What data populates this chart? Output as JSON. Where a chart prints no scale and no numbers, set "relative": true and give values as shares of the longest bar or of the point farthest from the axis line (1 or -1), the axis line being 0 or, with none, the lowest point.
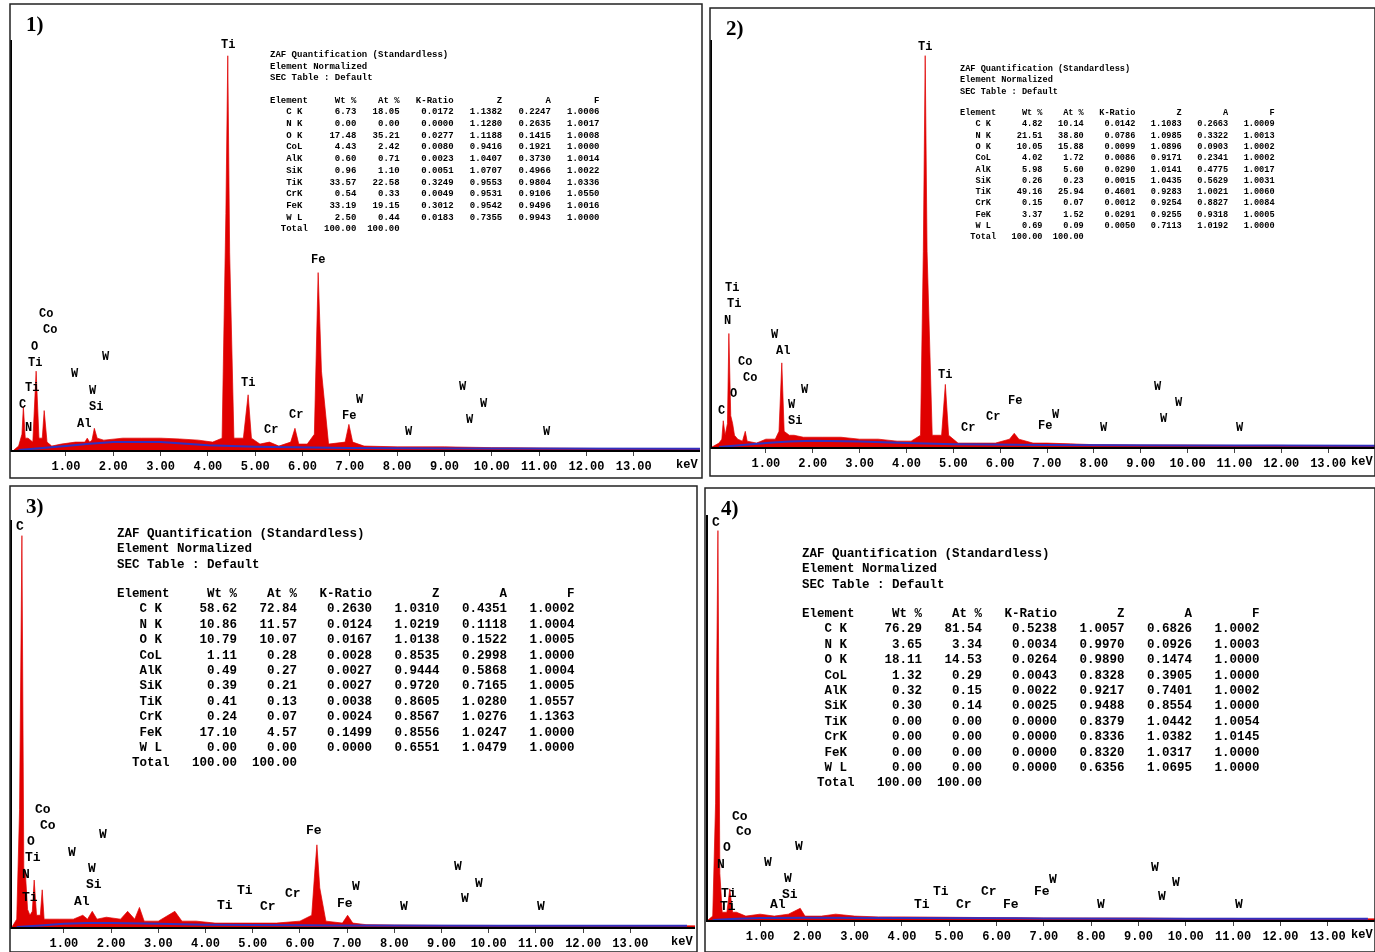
{
  "chart_data": [
    {
      "type": "area",
      "title": "1)",
      "xlabel": "keV",
      "relative": true,
      "xlim": [
        -0.14,
        14.4
      ],
      "xticks": [
        {
          "value": 1,
          "label": "1.00"
        },
        {
          "value": 2,
          "label": "2.00"
        },
        {
          "value": 3,
          "label": "3.00"
        },
        {
          "value": 4,
          "label": "4.00"
        },
        {
          "value": 5,
          "label": "5.00"
        },
        {
          "value": 6,
          "label": "6.00"
        },
        {
          "value": 7,
          "label": "7.00"
        },
        {
          "value": 8,
          "label": "8.00"
        },
        {
          "value": 9,
          "label": "9.00"
        },
        {
          "value": 10,
          "label": "10.00"
        },
        {
          "value": 11,
          "label": "11.00"
        },
        {
          "value": 12,
          "label": "12.00"
        },
        {
          "value": 13,
          "label": "13.00"
        }
      ],
      "series": [
        {
          "color": "#e00000",
          "x": [
            -0.1,
            0.0,
            0.07,
            0.1,
            0.14,
            0.2,
            0.3,
            0.37,
            0.43,
            0.5,
            0.54,
            0.6,
            0.7,
            0.9,
            1.2,
            1.4,
            1.45,
            1.5,
            1.55,
            1.6,
            1.66,
            1.8,
            2.2,
            2.6,
            3.0,
            3.4,
            3.8,
            4.1,
            4.3,
            4.38,
            4.42,
            4.46,
            4.55,
            4.75,
            4.85,
            4.92,
            5.1,
            5.3,
            5.5,
            5.75,
            5.84,
            5.92,
            6.1,
            6.25,
            6.33,
            6.4,
            6.55,
            6.9,
            6.98,
            7.06,
            7.3,
            8.0,
            9.0,
            10.0,
            11.0,
            12.0,
            13.0,
            14.4
          ],
          "values": [
            0,
            0.01,
            0.04,
            0.11,
            0.03,
            0.03,
            0.02,
            0.2,
            0.03,
            0.03,
            0.1,
            0.02,
            0.01,
            0.015,
            0.02,
            0.02,
            0.03,
            0.02,
            0.025,
            0.055,
            0.03,
            0.025,
            0.03,
            0.03,
            0.03,
            0.028,
            0.025,
            0.02,
            0.03,
            0.6,
            1.0,
            0.5,
            0.03,
            0.03,
            0.14,
            0.03,
            0.015,
            0.02,
            0.01,
            0.02,
            0.055,
            0.015,
            0.015,
            0.04,
            0.45,
            0.2,
            0.015,
            0.02,
            0.065,
            0.02,
            0.01,
            0.008,
            0.008,
            0.006,
            0.005,
            0.004,
            0.003,
            0.003
          ]
        },
        {
          "type": "line",
          "color": "#3030c0",
          "x": [
            0,
            0.5,
            1,
            1.5,
            2,
            3,
            4,
            5,
            7,
            10,
            14.4
          ],
          "values": [
            0,
            0.005,
            0.01,
            0.016,
            0.02,
            0.02,
            0.012,
            0.008,
            0.005,
            0.004,
            0.003
          ]
        }
      ],
      "annotations": [
        "ZAF Quantification (Standardless)",
        "Element Normalized",
        "SEC Table : Default",
        "Element     Wt %    At %   K-Ratio        Z        A        F",
        "   C K      6.73   18.05    0.0172   1.1382   0.2247   1.0006",
        "   N K      0.00    0.00    0.0000   1.1280   0.2635   1.0017",
        "   O K     17.48   35.21    0.0277   1.1188   0.1415   1.0008",
        "   CoL      4.43    2.42    0.0080   0.9416   0.1921   1.0000",
        "   AlK      0.60    0.71    0.0023   1.0407   0.3730   1.0014",
        "   SiK      0.96    1.10    0.0051   1.0707   0.4966   1.0022",
        "   TiK     33.57   22.58    0.3249   0.9553   0.9804   1.0336",
        "   CrK      0.54    0.33    0.0049   0.9531   0.9106   1.0550",
        "   FeK     33.19   19.15    0.3012   0.9542   0.9496   1.0016",
        "   W L      2.50    0.44    0.0183   0.7355   0.9943   1.0000",
        "  Total   100.00  100.00",
        "Ti",
        "Co",
        "Co",
        "O",
        "Ti",
        "Ti",
        "C",
        "N",
        "W",
        "W",
        "W",
        "Si",
        "Al",
        "Ti",
        "Cr",
        "Cr",
        "Fe",
        "Fe",
        "W",
        "W",
        "W",
        "W",
        "W",
        "W"
      ]
    },
    {
      "type": "area",
      "title": "2)",
      "xlabel": "keV",
      "relative": true,
      "xlim": [
        -0.15,
        14.0
      ],
      "xticks": [
        {
          "value": 1,
          "label": "1.00"
        },
        {
          "value": 2,
          "label": "2.00"
        },
        {
          "value": 3,
          "label": "3.00"
        },
        {
          "value": 4,
          "label": "4.00"
        },
        {
          "value": 5,
          "label": "5.00"
        },
        {
          "value": 6,
          "label": "6.00"
        },
        {
          "value": 7,
          "label": "7.00"
        },
        {
          "value": 8,
          "label": "8.00"
        },
        {
          "value": 9,
          "label": "9.00"
        },
        {
          "value": 10,
          "label": "10.00"
        },
        {
          "value": 11,
          "label": "11.00"
        },
        {
          "value": 12,
          "label": "12.00"
        },
        {
          "value": 13,
          "label": "13.00"
        }
      ],
      "series": [
        {
          "color": "#e00000",
          "x": [
            -0.15,
            0.0,
            0.06,
            0.09,
            0.13,
            0.18,
            0.21,
            0.25,
            0.29,
            0.33,
            0.4,
            0.5,
            0.56,
            0.6,
            0.8,
            1.0,
            1.2,
            1.28,
            1.34,
            1.39,
            1.5,
            1.6,
            1.8,
            2.2,
            2.6,
            3.0,
            3.4,
            3.8,
            4.1,
            4.3,
            4.36,
            4.4,
            4.44,
            4.55,
            4.75,
            4.83,
            4.9,
            5.1,
            5.5,
            5.9,
            6.2,
            6.3,
            6.4,
            6.7,
            7.0,
            7.5,
            8.0,
            9.0,
            10.0,
            11.0,
            12.0,
            13.0,
            14.0
          ],
          "values": [
            0,
            0.01,
            0.02,
            0.067,
            0.03,
            0.06,
            0.29,
            0.08,
            0.06,
            0.03,
            0.02,
            0.015,
            0.04,
            0.015,
            0.01,
            0.02,
            0.02,
            0.04,
            0.215,
            0.04,
            0.03,
            0.03,
            0.025,
            0.025,
            0.025,
            0.02,
            0.02,
            0.015,
            0.015,
            0.03,
            0.5,
            1.0,
            0.5,
            0.03,
            0.03,
            0.16,
            0.03,
            0.01,
            0.01,
            0.01,
            0.02,
            0.035,
            0.02,
            0.01,
            0.01,
            0.008,
            0.006,
            0.005,
            0.005,
            0.004,
            0.004,
            0.003,
            0.003
          ]
        },
        {
          "type": "line",
          "color": "#3030c0",
          "x": [
            0,
            0.5,
            1,
            1.5,
            2,
            3,
            4,
            5,
            7,
            10,
            14.0
          ],
          "values": [
            0,
            0.005,
            0.01,
            0.014,
            0.016,
            0.014,
            0.01,
            0.007,
            0.005,
            0.004,
            0.003
          ]
        }
      ],
      "annotations": [
        "ZAF Quantification (Standardless)",
        "Element Normalized",
        "SEC Table : Default",
        "Element     Wt %    At %   K-Ratio        Z        A        F",
        "   C K      4.82   10.14    0.0142   1.1083   0.2663   1.0009",
        "   N K     21.51   38.80    0.0786   1.0985   0.3322   1.0013",
        "   O K     10.05   15.88    0.0099   1.0896   0.0903   1.0002",
        "   CoL      4.02    1.72    0.0086   0.9171   0.2341   1.0002",
        "   AlK      5.98    5.60    0.0290   1.0141   0.4775   1.0017",
        "   SiK      0.26    0.23    0.0015   1.0435   0.5629   1.0031",
        "   TiK     49.16   25.94    0.4601   0.9283   1.0021   1.0060",
        "   CrK      0.15    0.07    0.0012   0.9254   0.8827   1.0084",
        "   FeK      3.37    1.52    0.0291   0.9255   0.9318   1.0005",
        "   W L      0.69    0.09    0.0050   0.7113   1.0192   1.0000",
        "  Total   100.00  100.00",
        "Ti",
        "Ti",
        "Ti",
        "N",
        "W",
        "Al",
        "Co",
        "Co",
        "O",
        "C",
        "W",
        "W",
        "Si",
        "Ti",
        "Fe",
        "Cr",
        "Cr",
        "W",
        "Fe",
        "W",
        "W",
        "W",
        "W",
        "W"
      ]
    },
    {
      "type": "area",
      "title": "3)",
      "xlabel": "keV",
      "relative": true,
      "xlim": [
        -0.1,
        14.37
      ],
      "xticks": [
        {
          "value": 1,
          "label": "1.00"
        },
        {
          "value": 2,
          "label": "2.00"
        },
        {
          "value": 3,
          "label": "3.00"
        },
        {
          "value": 4,
          "label": "4.00"
        },
        {
          "value": 5,
          "label": "5.00"
        },
        {
          "value": 6,
          "label": "6.00"
        },
        {
          "value": 7,
          "label": "7.00"
        },
        {
          "value": 8,
          "label": "8.00"
        },
        {
          "value": 9,
          "label": "9.00"
        },
        {
          "value": 10,
          "label": "10.00"
        },
        {
          "value": 11,
          "label": "11.00"
        },
        {
          "value": 12,
          "label": "12.00"
        },
        {
          "value": 13,
          "label": "13.00"
        }
      ],
      "series": [
        {
          "color": "#e00000",
          "x": [
            -0.1,
            0.0,
            0.06,
            0.11,
            0.15,
            0.18,
            0.23,
            0.28,
            0.33,
            0.37,
            0.42,
            0.5,
            0.54,
            0.58,
            0.7,
            0.9,
            1.2,
            1.4,
            1.5,
            1.6,
            1.7,
            1.9,
            2.2,
            2.35,
            2.5,
            2.6,
            2.7,
            3.0,
            3.35,
            3.5,
            3.8,
            4.2,
            4.6,
            5.0,
            5.5,
            6.0,
            6.25,
            6.32,
            6.36,
            6.42,
            6.55,
            6.9,
            7.01,
            7.12,
            7.4,
            8.0,
            9.0,
            10.0,
            11.0,
            12.0,
            13.0,
            14.37
          ],
          "values": [
            0,
            0.02,
            0.3,
            1.0,
            0.15,
            0.145,
            0.045,
            0.03,
            0.04,
            0.12,
            0.03,
            0.03,
            0.095,
            0.02,
            0.02,
            0.02,
            0.02,
            0.03,
            0.02,
            0.04,
            0.02,
            0.025,
            0.02,
            0.04,
            0.02,
            0.05,
            0.015,
            0.015,
            0.04,
            0.015,
            0.015,
            0.01,
            0.01,
            0.01,
            0.01,
            0.015,
            0.03,
            0.15,
            0.21,
            0.1,
            0.015,
            0.01,
            0.03,
            0.01,
            0.006,
            0.005,
            0.004,
            0.004,
            0.003,
            0.003,
            0.003,
            0.003
          ]
        },
        {
          "type": "line",
          "color": "#3030c0",
          "x": [
            0,
            0.5,
            1,
            1.5,
            2,
            3,
            4,
            5,
            7,
            10,
            14.2
          ],
          "values": [
            0,
            0.004,
            0.008,
            0.01,
            0.01,
            0.008,
            0.006,
            0.005,
            0.004,
            0.003,
            0.003
          ]
        }
      ],
      "annotations": [
        "ZAF Quantification (Standardless)",
        "Element Normalized",
        "SEC Table : Default",
        "Element     Wt %    At %   K-Ratio        Z        A        F",
        "   C K     58.62   72.84    0.2630   1.0310   0.4351   1.0002",
        "   N K     10.86   11.57    0.0124   1.0219   0.1118   1.0004",
        "   O K     10.79   10.07    0.0167   1.0138   0.1522   1.0005",
        "   CoL      1.11    0.28    0.0028   0.8535   0.2998   1.0000",
        "   AlK      0.49    0.27    0.0027   0.9444   0.5868   1.0004",
        "   SiK      0.39    0.21    0.0027   0.9720   0.7165   1.0005",
        "   TiK      0.41    0.13    0.0038   0.8605   1.0280   1.0557",
        "   CrK      0.24    0.07    0.0024   0.8567   1.0276   1.1363",
        "   FeK     17.10    4.57    0.1499   0.8556   1.0247   1.0000",
        "   W L      0.00    0.00    0.0000   0.6551   1.0479   1.0000",
        "  Total   100.00  100.00",
        "C",
        "Co",
        "Co",
        "O",
        "Ti",
        "N",
        "Ti",
        "W",
        "W",
        "W",
        "Si",
        "Al",
        "Ti",
        "Ti",
        "Cr",
        "Cr",
        "Fe",
        "Fe",
        "W",
        "W",
        "W",
        "W",
        "W",
        "W"
      ]
    },
    {
      "type": "area",
      "title": "4)",
      "xlabel": "keV",
      "relative": true,
      "xlim": [
        -0.1,
        14.0
      ],
      "xticks": [
        {
          "value": 1,
          "label": "1.00"
        },
        {
          "value": 2,
          "label": "2.00"
        },
        {
          "value": 3,
          "label": "3.00"
        },
        {
          "value": 4,
          "label": "4.00"
        },
        {
          "value": 5,
          "label": "5.00"
        },
        {
          "value": 6,
          "label": "6.00"
        },
        {
          "value": 7,
          "label": "7.00"
        },
        {
          "value": 8,
          "label": "8.00"
        },
        {
          "value": 9,
          "label": "9.00"
        },
        {
          "value": 10,
          "label": "10.00"
        },
        {
          "value": 11,
          "label": "11.00"
        },
        {
          "value": 12,
          "label": "12.00"
        },
        {
          "value": 13,
          "label": "13.00"
        }
      ],
      "series": [
        {
          "color": "#e00000",
          "x": [
            -0.1,
            0.0,
            0.06,
            0.11,
            0.15,
            0.2,
            0.3,
            0.36,
            0.42,
            0.5,
            0.7,
            1.0,
            1.3,
            1.6,
            1.85,
            1.95,
            2.3,
            2.6,
            3.0,
            3.5,
            4.0,
            5.0,
            6.0,
            7.0,
            8.0,
            9.0,
            10.0,
            11.0,
            12.0,
            13.0,
            14.0
          ],
          "values": [
            0,
            0.01,
            0.3,
            1.0,
            0.12,
            0.02,
            0.02,
            0.08,
            0.02,
            0.02,
            0.01,
            0.015,
            0.01,
            0.015,
            0.03,
            0.01,
            0.01,
            0.015,
            0.01,
            0.008,
            0.008,
            0.007,
            0.006,
            0.005,
            0.005,
            0.005,
            0.004,
            0.004,
            0.003,
            0.003,
            0.003
          ]
        },
        {
          "type": "line",
          "color": "#3030c0",
          "x": [
            0,
            0.5,
            1,
            2,
            4,
            7,
            10,
            13.85
          ],
          "values": [
            0,
            0.003,
            0.005,
            0.006,
            0.005,
            0.004,
            0.003,
            0.003
          ]
        }
      ],
      "annotations": [
        "ZAF Quantification (Standardless)",
        "Element Normalized",
        "SEC Table : Default",
        "Element     Wt %    At %   K-Ratio        Z        A        F",
        "   C K     76.29   81.54    0.5238   1.0057   0.6826   1.0002",
        "   N K      3.65    3.34    0.0034   0.9970   0.0926   1.0003",
        "   O K     18.11   14.53    0.0264   0.9890   0.1474   1.0000",
        "   CoL      1.32    0.29    0.0043   0.8328   0.3905   1.0000",
        "   AlK      0.32    0.15    0.0022   0.9217   0.7401   1.0002",
        "   SiK      0.30    0.14    0.0025   0.9488   0.8554   1.0000",
        "   TiK      0.00    0.00    0.0000   0.8379   1.0442   1.0054",
        "   CrK      0.00    0.00    0.0000   0.8336   1.0382   1.0145",
        "   FeK      0.00    0.00    0.0000   0.8320   1.0317   1.0000",
        "   W L      0.00    0.00    0.0000   0.6356   1.0695   1.0000",
        "  Total   100.00  100.00",
        "C",
        "Co",
        "Co",
        "O",
        "N",
        "W",
        "W",
        "W",
        "Si",
        "Ti",
        "Ti",
        "Al",
        "Ti",
        "Ti",
        "Cr",
        "Cr",
        "Fe",
        "Fe",
        "W",
        "W",
        "W",
        "W",
        "W",
        "W"
      ]
    }
  ]
}
